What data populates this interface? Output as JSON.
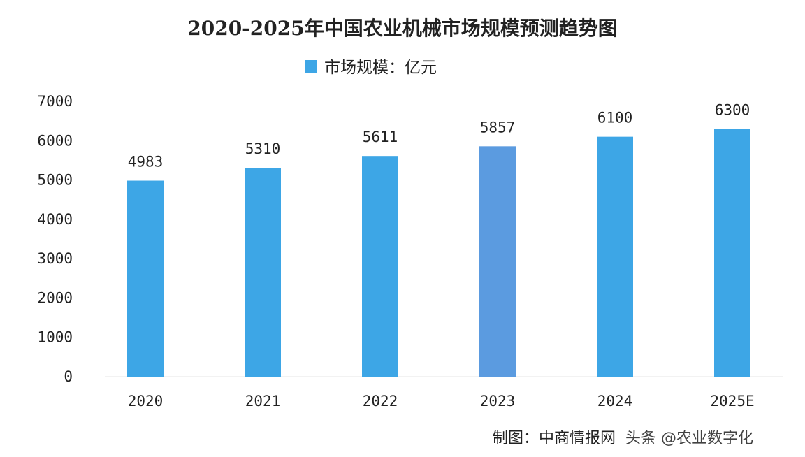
{
  "chart_data": {
    "type": "bar",
    "title": "2020-2025年中国农业机械市场规模预测趋势图",
    "legend": {
      "label": "市场规模：亿元",
      "position": "top-center"
    },
    "categories": [
      "2020",
      "2021",
      "2022",
      "2023",
      "2024",
      "2025E"
    ],
    "series": [
      {
        "name": "市场规模：亿元",
        "values": [
          4983,
          5310,
          5611,
          5857,
          6100,
          6300
        ]
      }
    ],
    "data_labels": [
      "4983",
      "5310",
      "5611",
      "5857",
      "6100",
      "6300"
    ],
    "y_ticks": [
      "0",
      "1000",
      "2000",
      "3000",
      "4000",
      "5000",
      "6000",
      "7000"
    ],
    "ylim": [
      0,
      7000
    ],
    "grid": false,
    "colors": {
      "bar": "#3da6e6",
      "highlight_bar": "#5b9be0"
    },
    "highlight_index": 3
  },
  "footer": {
    "source": "制图：中商情报网",
    "watermark": "头条 @农业数字化"
  }
}
